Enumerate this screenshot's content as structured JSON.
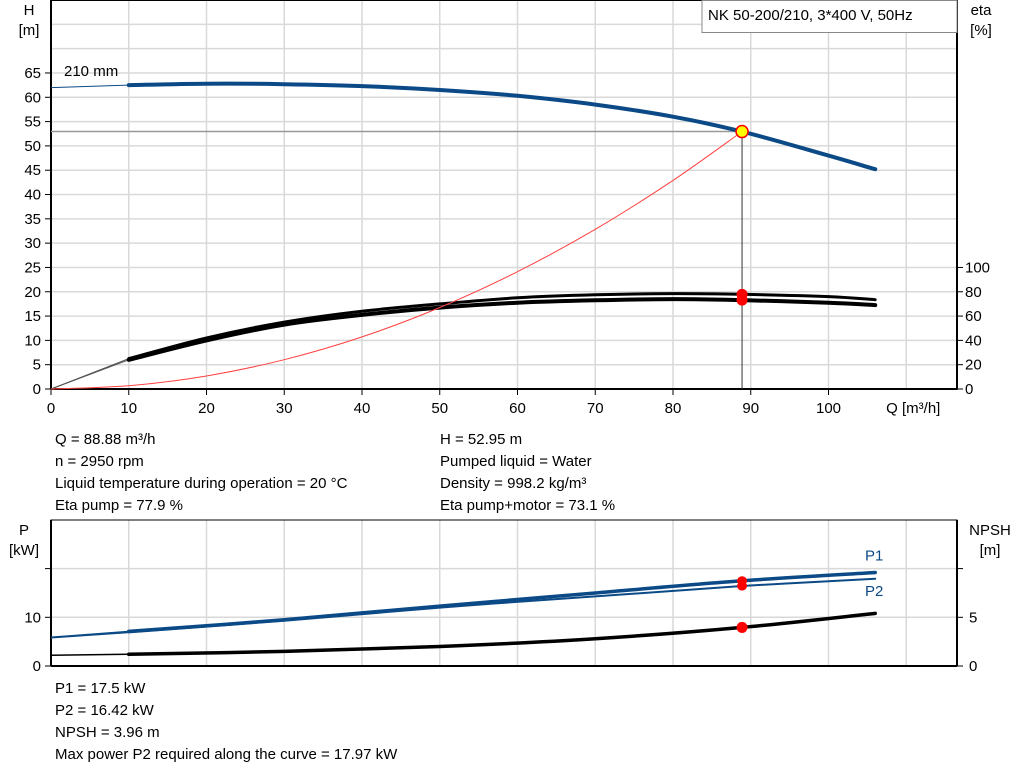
{
  "chart_data": [
    {
      "type": "line",
      "title": "NK 50-200/210, 3*400 V, 50Hz",
      "xlabel": "Q [m³/h]",
      "ylabel": "H\n[m]",
      "ylabel_lines": [
        "H",
        "[m]"
      ],
      "y2label_lines": [
        "eta",
        "[%]"
      ],
      "xlim": [
        0,
        116
      ],
      "ylim": [
        0,
        80
      ],
      "y2lim": [
        0,
        100
      ],
      "grid": true,
      "x_ticks": [
        0,
        10,
        20,
        30,
        40,
        50,
        60,
        70,
        80,
        90,
        100
      ],
      "y_ticks": [
        0,
        5,
        10,
        15,
        20,
        25,
        30,
        35,
        40,
        45,
        50,
        55,
        60,
        65
      ],
      "y2_ticks": [
        0,
        20,
        40,
        60,
        80,
        100
      ],
      "curve_label": "210 mm",
      "series": [
        {
          "key": "H",
          "axis": "H",
          "color": "#0b4a86",
          "x": [
            0,
            10,
            20,
            30,
            40,
            50,
            60,
            70,
            80,
            88.88,
            100,
            106
          ],
          "y": [
            62,
            62.5,
            62.8,
            62.7,
            62.3,
            61.5,
            60.3,
            58.5,
            56,
            52.95,
            48,
            45.2
          ]
        },
        {
          "key": "eta_pump",
          "axis": "eta",
          "color": "#000000",
          "x": [
            0,
            10,
            20,
            30,
            40,
            50,
            60,
            70,
            80,
            88.88,
            100,
            106
          ],
          "y": [
            0,
            25,
            42,
            55,
            64,
            70,
            75,
            77.5,
            78.5,
            77.9,
            76,
            73.5
          ]
        },
        {
          "key": "eta_pump_motor",
          "axis": "eta",
          "color": "#000000",
          "x": [
            0,
            10,
            20,
            30,
            40,
            50,
            60,
            70,
            80,
            88.88,
            100,
            106
          ],
          "y": [
            0,
            24,
            40,
            53,
            61,
            67,
            71,
            73,
            74,
            73.1,
            71,
            69
          ]
        },
        {
          "key": "system_curve",
          "axis": "H",
          "color": "#ff4040",
          "x": [
            0,
            10,
            20,
            30,
            40,
            50,
            60,
            70,
            80,
            88.88
          ],
          "y": [
            0,
            0.67,
            2.68,
            6.03,
            10.72,
            16.76,
            24.13,
            32.84,
            42.9,
            52.95
          ]
        }
      ],
      "duty_point": {
        "Q": 88.88,
        "H": 52.95,
        "eta_pump": 77.9,
        "eta_pump_motor": 73.1
      }
    },
    {
      "type": "line",
      "ylabel_lines": [
        "P",
        "[kW]"
      ],
      "y2label_lines": [
        "NPSH",
        "[m]"
      ],
      "xlim": [
        0,
        116
      ],
      "ylim": [
        0,
        30
      ],
      "y2lim": [
        0,
        15
      ],
      "grid": true,
      "y_ticks": [
        0,
        10
      ],
      "y2_ticks": [
        0,
        5
      ],
      "series": [
        {
          "key": "P1",
          "name": "P1",
          "axis": "P",
          "color": "#0b4a86",
          "x": [
            0,
            10,
            30,
            50,
            70,
            88.88,
            106
          ],
          "y": [
            5.9,
            7.1,
            9.5,
            12.3,
            15,
            17.5,
            19.2
          ]
        },
        {
          "key": "P2",
          "name": "P2",
          "axis": "P",
          "color": "#0b4a86",
          "x": [
            0,
            10,
            30,
            50,
            70,
            88.88,
            106
          ],
          "y": [
            5.8,
            6.9,
            9.3,
            12,
            14.3,
            16.42,
            17.9
          ]
        },
        {
          "key": "NPSH",
          "axis": "NPSH",
          "color": "#000000",
          "x": [
            0,
            10,
            30,
            50,
            70,
            88.88,
            106
          ],
          "y": [
            1.1,
            1.2,
            1.5,
            2,
            2.8,
            3.96,
            5.4
          ]
        }
      ],
      "duty_point": {
        "Q": 88.88,
        "P1": 17.5,
        "P2": 16.42,
        "NPSH": 3.96
      }
    }
  ],
  "info_top_left": [
    "Q = 88.88 m³/h",
    "n = 2950 rpm",
    "Liquid temperature during operation = 20 °C",
    "Eta pump = 77.9 %"
  ],
  "info_top_right": [
    "H = 52.95 m",
    "Pumped liquid = Water",
    "Density = 998.2 kg/m³",
    "Eta pump+motor = 73.1 %"
  ],
  "info_bottom": [
    "P1 = 17.5 kW",
    "P2 = 16.42 kW",
    "NPSH = 3.96 m",
    "Max power P2 required along the curve = 17.97 kW"
  ],
  "colors": {
    "head": "#0b4a86",
    "system": "#ff4040",
    "duty_marker": "#ff0000",
    "duty_fill": "#ffff00",
    "grid": "#d9d9d9"
  }
}
